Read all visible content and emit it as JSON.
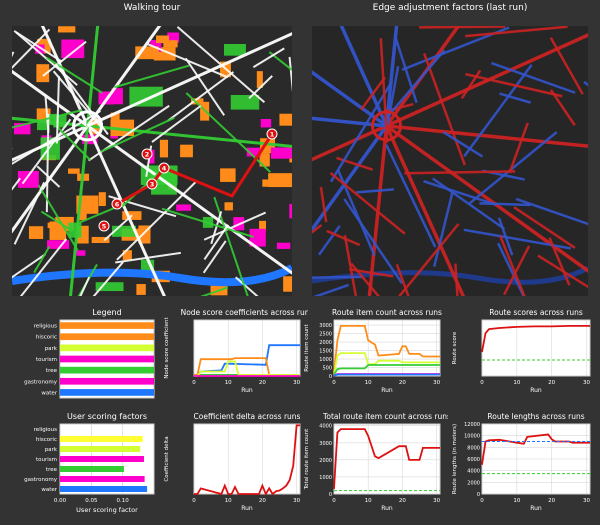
{
  "maps": {
    "left_title": "Walking tour",
    "right_title": "Edge adjustment factors (last run)",
    "stop_markers": [
      "1",
      "2",
      "3",
      "4",
      "5",
      "6"
    ],
    "colors": {
      "background": "#ff8c1a",
      "street": "#ffffff",
      "park": "#33cc33",
      "water": "#1f77ff",
      "tourism": "#ff00cc",
      "route": "#dd1111",
      "factor_high": "#cc2222",
      "factor_low": "#3355cc"
    }
  },
  "chart_data": [
    {
      "id": "legend",
      "type": "bar",
      "title": "Legend",
      "categories": [
        "religious",
        "hiscoric",
        "park",
        "tourism",
        "tree",
        "gastronomy",
        "water"
      ],
      "values": [
        1,
        1,
        1,
        1,
        1,
        1,
        1
      ],
      "colors": [
        "#ff8c1a",
        "#ff8c1a",
        "#d4ff33",
        "#ff00cc",
        "#33cc33",
        "#ff00cc",
        "#1f77ff"
      ],
      "orientation": "horizontal",
      "grid": false
    },
    {
      "id": "user_scoring",
      "type": "bar",
      "title": "User scoring factors",
      "categories": [
        "religious",
        "hiscoric",
        "park",
        "tourism",
        "tree",
        "gastronomy",
        "water"
      ],
      "values": [
        0.0,
        0.132,
        0.128,
        0.134,
        0.102,
        0.135,
        0.139
      ],
      "colors": [
        "#ff8c1a",
        "#ffff33",
        "#d4ff33",
        "#ff00cc",
        "#33cc33",
        "#ff00cc",
        "#1f77ff"
      ],
      "orientation": "horizontal",
      "xlabel": "User scoring factor",
      "xlim": [
        0,
        0.15
      ],
      "xticks": [
        "0.00",
        "0.05",
        "0.10"
      ],
      "grid": true
    },
    {
      "id": "node_score",
      "type": "line",
      "title": "Node score coefficients across runs",
      "xlabel": "Run",
      "ylabel": "Node score coefficient",
      "xlim": [
        0,
        31
      ],
      "ylim": [
        0,
        1
      ],
      "xticks": [
        "0",
        "10",
        "20",
        "30"
      ],
      "grid": true,
      "series": [
        {
          "color": "#1f77ff",
          "x": [
            0,
            1,
            2,
            8,
            9,
            10,
            21,
            22,
            23,
            31
          ],
          "y": [
            0.02,
            0.02,
            0.08,
            0.1,
            0.22,
            0.22,
            0.2,
            0.55,
            0.55,
            0.55
          ]
        },
        {
          "color": "#ff8c1a",
          "x": [
            0,
            1,
            2,
            11,
            12,
            21,
            22,
            31
          ],
          "y": [
            0.02,
            0.02,
            0.3,
            0.3,
            0.32,
            0.32,
            0.02,
            0.02
          ]
        },
        {
          "color": "#33cc33",
          "x": [
            0,
            1,
            2,
            9,
            10,
            31
          ],
          "y": [
            0.0,
            0.0,
            0.02,
            0.02,
            0.02,
            0.02
          ]
        },
        {
          "color": "#d4ff33",
          "x": [
            0,
            1,
            2,
            9,
            10,
            12,
            13,
            31
          ],
          "y": [
            0.0,
            0.0,
            0.08,
            0.08,
            0.26,
            0.26,
            0.02,
            0.02
          ]
        },
        {
          "color": "#ff00cc",
          "x": [
            0,
            31
          ],
          "y": [
            0.0,
            0.0
          ]
        }
      ]
    },
    {
      "id": "route_items",
      "type": "line",
      "title": "Route item count across runs",
      "xlabel": "Run",
      "ylabel": "Route item count",
      "xlim": [
        0,
        31
      ],
      "ylim": [
        0,
        3300
      ],
      "yticks": [
        "0",
        "500",
        "1000",
        "1500",
        "2000",
        "2500",
        "3000"
      ],
      "xticks": [
        "0",
        "10",
        "20",
        "30"
      ],
      "grid": true,
      "series": [
        {
          "color": "#ff8c1a",
          "x": [
            0,
            1,
            2,
            9,
            10,
            12,
            13,
            19,
            20,
            21,
            22,
            25,
            26,
            31
          ],
          "y": [
            200,
            2100,
            2950,
            2950,
            2100,
            1850,
            1200,
            1300,
            1750,
            1750,
            1300,
            1300,
            1150,
            1150
          ]
        },
        {
          "color": "#d4ff33",
          "x": [
            0,
            1,
            2,
            9,
            10,
            12,
            13,
            19,
            20,
            31
          ],
          "y": [
            100,
            1200,
            1350,
            1350,
            700,
            700,
            900,
            900,
            800,
            800
          ]
        },
        {
          "color": "#33cc33",
          "x": [
            0,
            1,
            2,
            9,
            10,
            31
          ],
          "y": [
            80,
            400,
            450,
            450,
            650,
            650
          ]
        },
        {
          "color": "#ff00cc",
          "x": [
            0,
            1,
            31
          ],
          "y": [
            20,
            120,
            120
          ]
        },
        {
          "color": "#1f77ff",
          "x": [
            0,
            1,
            31
          ],
          "y": [
            10,
            90,
            90
          ]
        }
      ]
    },
    {
      "id": "route_scores",
      "type": "line",
      "title": "Route scores across runs",
      "xlabel": "Run",
      "ylabel": "Route score",
      "xlim": [
        0,
        31
      ],
      "ylim": [
        0,
        1.05
      ],
      "xticks": [
        "0",
        "10",
        "20",
        "30"
      ],
      "grid": true,
      "series": [
        {
          "color": "#dd1111",
          "x": [
            0,
            1,
            2,
            5,
            10,
            15,
            20,
            25,
            30,
            31
          ],
          "y": [
            0.45,
            0.8,
            0.88,
            0.9,
            0.92,
            0.93,
            0.93,
            0.94,
            0.94,
            0.94
          ]
        },
        {
          "color": "#33cc33",
          "dashed": true,
          "x": [
            0,
            31
          ],
          "y": [
            0.3,
            0.3
          ]
        }
      ]
    },
    {
      "id": "coef_delta",
      "type": "line",
      "title": "Coefficient delta across runs",
      "xlabel": "Run",
      "ylabel": "Coefficient delta",
      "xlim": [
        0,
        31
      ],
      "ylim": [
        0,
        1
      ],
      "xticks": [
        "0",
        "10",
        "20",
        "30"
      ],
      "grid": true,
      "series": [
        {
          "color": "#dd1111",
          "x": [
            0,
            1,
            2,
            8,
            9,
            10,
            11,
            12,
            13,
            19,
            20,
            21,
            22,
            23,
            24,
            25,
            26,
            27,
            28,
            29,
            30,
            31
          ],
          "y": [
            0.0,
            0.0,
            0.08,
            0.0,
            0.12,
            0.0,
            0.0,
            0.1,
            0.0,
            0.0,
            0.12,
            0.0,
            0.08,
            0.0,
            0.04,
            0.05,
            0.08,
            0.12,
            0.2,
            0.4,
            0.98,
            0.98
          ]
        }
      ]
    },
    {
      "id": "total_items",
      "type": "line",
      "title": "Total route item count across runs",
      "xlabel": "Run",
      "ylabel": "Total route item count",
      "xlim": [
        0,
        31
      ],
      "ylim": [
        0,
        4100
      ],
      "yticks": [
        "0",
        "1000",
        "2000",
        "3000",
        "4000"
      ],
      "xticks": [
        "0",
        "10",
        "20",
        "30"
      ],
      "grid": true,
      "series": [
        {
          "color": "#dd1111",
          "x": [
            0,
            1,
            2,
            9,
            10,
            12,
            13,
            19,
            20,
            21,
            22,
            25,
            26,
            31
          ],
          "y": [
            300,
            3600,
            3800,
            3800,
            3400,
            2200,
            2100,
            2800,
            2800,
            2800,
            2000,
            2000,
            2700,
            2700
          ]
        },
        {
          "color": "#33cc33",
          "dashed": true,
          "x": [
            0,
            31
          ],
          "y": [
            200,
            200
          ]
        }
      ]
    },
    {
      "id": "route_lengths",
      "type": "line",
      "title": "Route lengths across runs",
      "xlabel": "Run",
      "ylabel": "Route lengths (in meters)",
      "xlim": [
        0,
        31
      ],
      "ylim": [
        0,
        12000
      ],
      "yticks": [
        "0",
        "2000",
        "4000",
        "6000",
        "8000",
        "10000",
        "12000"
      ],
      "xticks": [
        "0",
        "10",
        "20",
        "30"
      ],
      "grid": true,
      "series": [
        {
          "color": "#dd1111",
          "x": [
            0,
            1,
            2,
            5,
            10,
            12,
            13,
            19,
            20,
            21,
            22,
            25,
            26,
            31
          ],
          "y": [
            5000,
            9000,
            9200,
            9300,
            8800,
            8600,
            9800,
            10200,
            9400,
            9000,
            9000,
            9000,
            8800,
            8800
          ]
        },
        {
          "color": "#1f77ff",
          "dashed": true,
          "x": [
            0,
            31
          ],
          "y": [
            9000,
            9000
          ]
        },
        {
          "color": "#33cc33",
          "dashed": true,
          "x": [
            0,
            31
          ],
          "y": [
            3500,
            3500
          ]
        }
      ]
    }
  ]
}
